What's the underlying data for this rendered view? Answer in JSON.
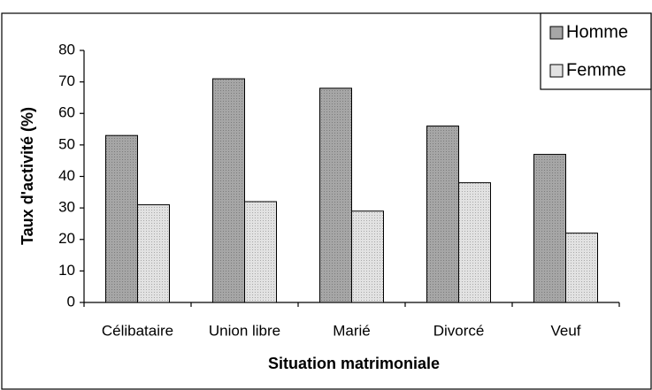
{
  "chart_data": {
    "type": "bar",
    "x_label": "Situation matrimoniale",
    "y_label": "Taux d'activité (%)",
    "categories": [
      "Célibataire",
      "Union libre",
      "Marié",
      "Divorcé",
      "Veuf"
    ],
    "series": [
      {
        "name": "Homme",
        "color": "#a6a6a6",
        "values": [
          53,
          71,
          68,
          56,
          47
        ]
      },
      {
        "name": "Femme",
        "color": "#e2e2e2",
        "values": [
          31,
          32,
          29,
          38,
          22
        ]
      }
    ],
    "ylim": [
      0,
      80
    ],
    "yticks": [
      0,
      10,
      20,
      30,
      40,
      50,
      60,
      70,
      80
    ],
    "legend": "top-right"
  }
}
